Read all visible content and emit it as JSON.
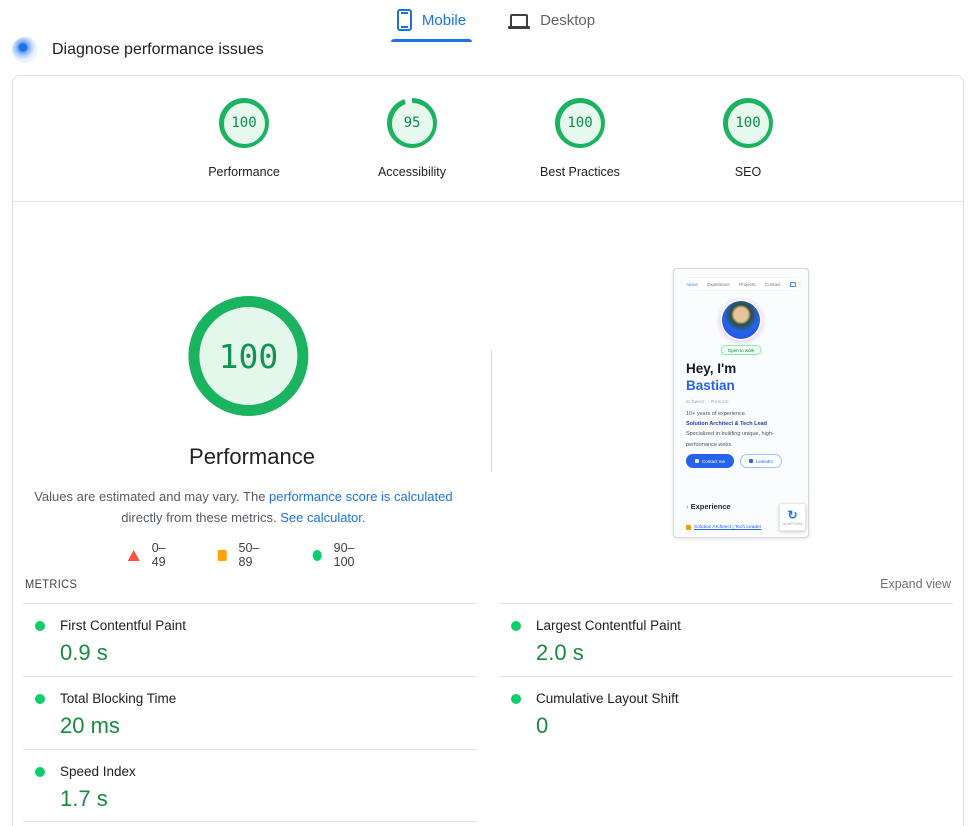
{
  "tabs": {
    "mobile": "Mobile",
    "desktop": "Desktop"
  },
  "header": {
    "title": "Diagnose performance issues"
  },
  "colors": {
    "accent_blue": "#1a73e8",
    "gauge_green": "#1ab35f",
    "gauge_fill": "#e7f8ee",
    "value_green": "#178a3e",
    "pass_dot_green": "#0cce6b",
    "legend_red": "#ff4e42",
    "legend_orange": "#ffa400"
  },
  "category_scores": [
    {
      "label": "Performance",
      "score": "100",
      "arc": 100
    },
    {
      "label": "Accessibility",
      "score": "95",
      "arc": 95
    },
    {
      "label": "Best Practices",
      "score": "100",
      "arc": 100
    },
    {
      "label": "SEO",
      "score": "100",
      "arc": 100
    }
  ],
  "performance_section": {
    "score": "100",
    "arc": 100,
    "title": "Performance",
    "desc_part1": "Values are estimated and may vary. The ",
    "desc_link1": "performance score is calculated",
    "desc_part2": " directly from these metrics. ",
    "desc_link2": "See calculator.",
    "legend": [
      {
        "range": "0–49",
        "marker": "triangle-red"
      },
      {
        "range": "50–89",
        "marker": "square-orange"
      },
      {
        "range": "90–100",
        "marker": "circle-green"
      }
    ]
  },
  "metrics": {
    "heading": "METRICS",
    "expand_label": "Expand view",
    "left": [
      {
        "label": "First Contentful Paint",
        "value": "0.9 s"
      },
      {
        "label": "Total Blocking Time",
        "value": "20 ms"
      },
      {
        "label": "Speed Index",
        "value": "1.7 s"
      }
    ],
    "right": [
      {
        "label": "Largest Contentful Paint",
        "value": "2.0 s"
      },
      {
        "label": "Cumulative Layout Shift",
        "value": "0"
      }
    ]
  },
  "thumbnail": {
    "nav": [
      "About",
      "Experience",
      "Projects",
      "Contact"
    ],
    "open_to_work": "Open to work",
    "heading_line1": "Hey, I'm",
    "heading_line2": "Bastian",
    "subline": "Schweiz, · Remote",
    "bio_part1": "10+ years of experience.",
    "bio_strong": "Solution Architect & Tech Lead",
    "bio_part2": "Specialized in building unique, high-performance webs.",
    "btn_contact": "Contact me",
    "btn_linkedin": "LinkedIn",
    "section_heading": "Experience",
    "experience_link": "Solution Architect | Tech Leader",
    "recaptcha_label": "reCAPTCHA"
  }
}
